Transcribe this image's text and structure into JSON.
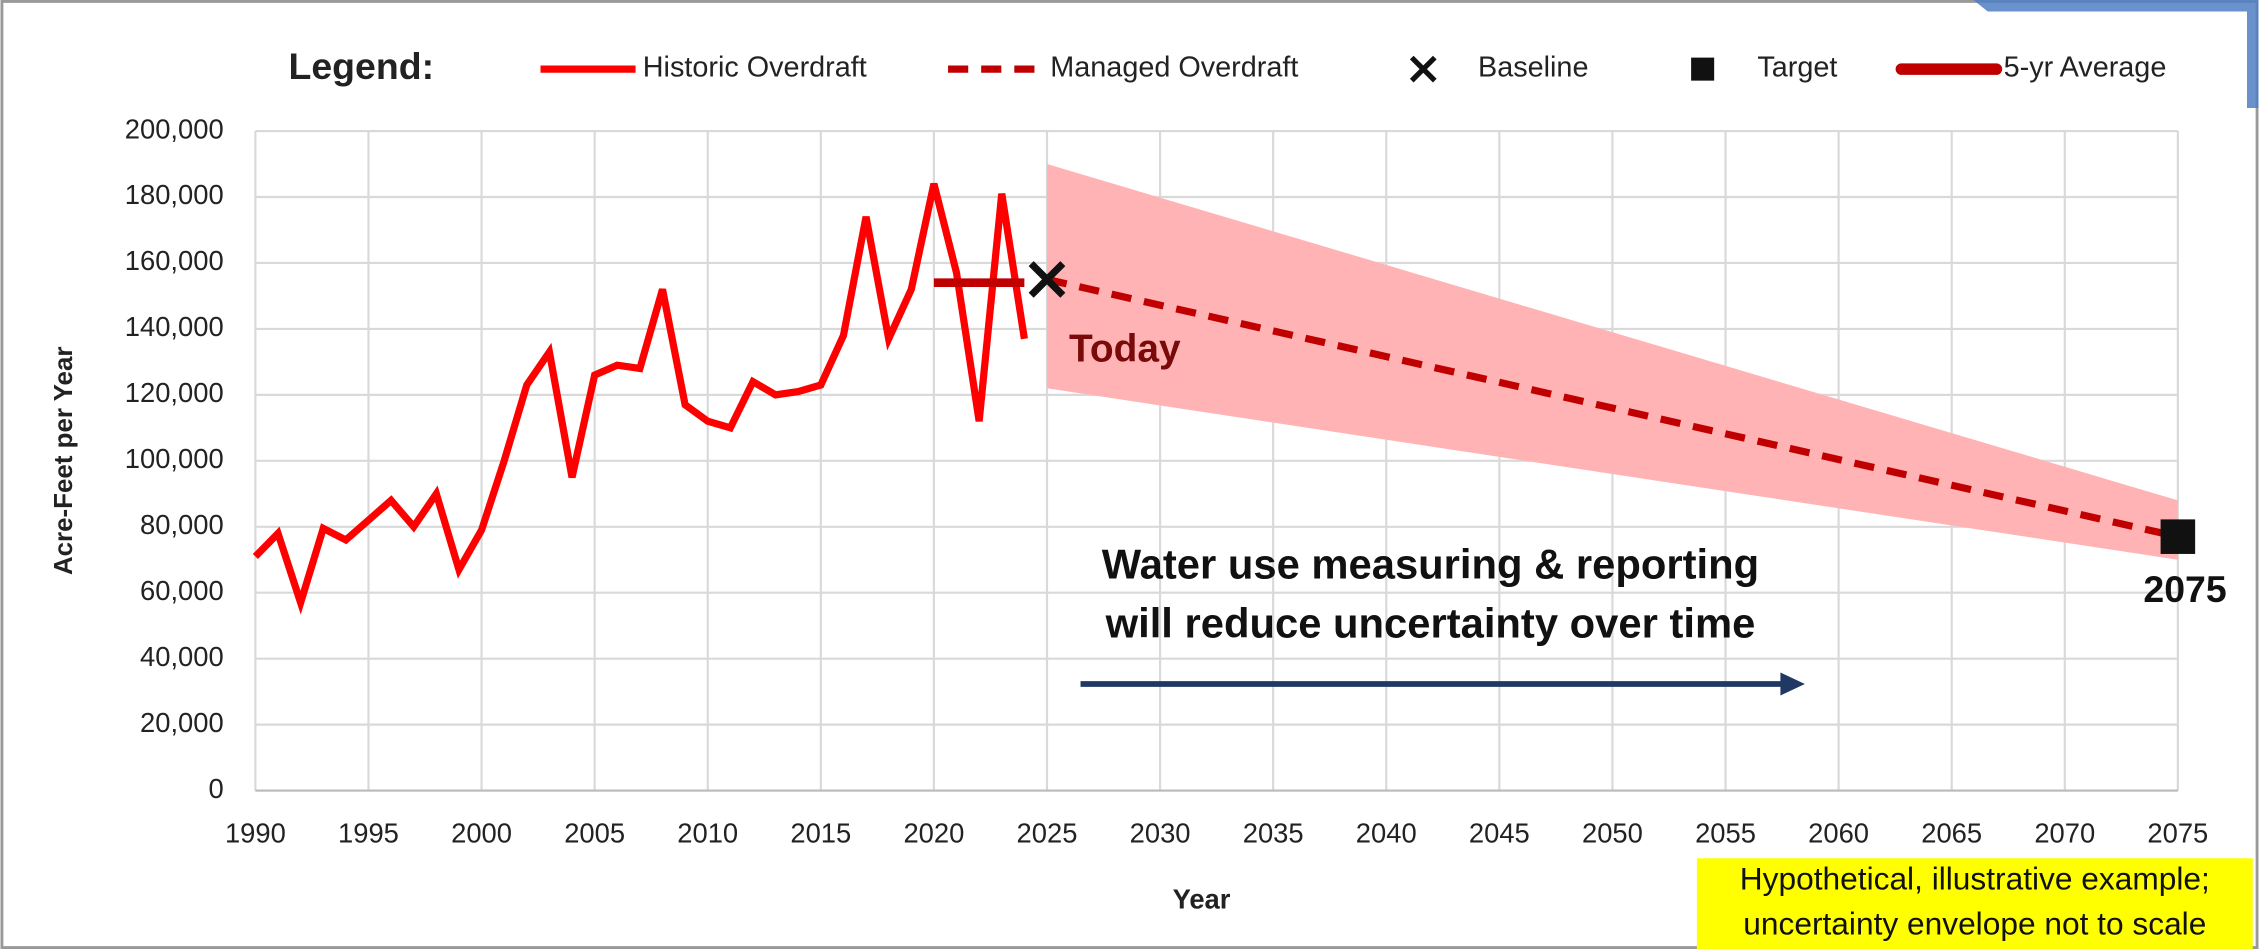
{
  "chart_data": {
    "type": "line",
    "legend_title": "Legend:",
    "xlabel": "Year",
    "ylabel": "Acre-Feet per Year",
    "xlim": [
      1990,
      2075
    ],
    "xticks": [
      1990,
      1995,
      2000,
      2005,
      2010,
      2015,
      2020,
      2025,
      2030,
      2035,
      2040,
      2045,
      2050,
      2055,
      2060,
      2065,
      2070,
      2075
    ],
    "ylim": [
      0,
      200000
    ],
    "yticks": [
      0,
      {
        "value": 20000,
        "label": "20,000"
      },
      {
        "value": 40000,
        "label": "40,000"
      },
      {
        "value": 60000,
        "label": "60,000"
      },
      {
        "value": 80000,
        "label": "80,000"
      },
      {
        "value": 100000,
        "label": "100,000"
      },
      {
        "value": 120000,
        "label": "120,000"
      },
      {
        "value": 140000,
        "label": "140,000"
      },
      {
        "value": 160000,
        "label": "160,000"
      },
      {
        "value": 180000,
        "label": "180,000"
      },
      {
        "value": 200000,
        "label": "200,000"
      }
    ],
    "grid": true,
    "series": [
      {
        "name": "Historic Overdraft",
        "color": "#ff0000",
        "style": "solid",
        "x": [
          1990,
          1991,
          1992,
          1993,
          1994,
          1995,
          1996,
          1997,
          1998,
          1999,
          2000,
          2001,
          2002,
          2003,
          2004,
          2005,
          2006,
          2007,
          2008,
          2009,
          2010,
          2011,
          2012,
          2013,
          2014,
          2015,
          2016,
          2017,
          2018,
          2019,
          2020,
          2021,
          2022,
          2023,
          2024
        ],
        "values": [
          71000,
          78000,
          57000,
          79500,
          76000,
          82000,
          88000,
          80000,
          90000,
          67000,
          79000,
          100000,
          123000,
          133000,
          95000,
          126000,
          129000,
          128000,
          152000,
          117000,
          112000,
          110000,
          124000,
          120000,
          121000,
          123000,
          138000,
          174000,
          137000,
          152000,
          184000,
          157000,
          112000,
          181000,
          137000
        ]
      },
      {
        "name": "Managed Overdraft",
        "color": "#c00000",
        "style": "dashed",
        "x": [
          2025,
          2075
        ],
        "values": [
          155000,
          77000
        ]
      },
      {
        "name": "Baseline",
        "color": "#111111",
        "style": "cross",
        "x": [
          2025
        ],
        "values": [
          155000
        ]
      },
      {
        "name": "Target",
        "color": "#111111",
        "style": "square",
        "x": [
          2075
        ],
        "values": [
          77000
        ]
      },
      {
        "name": "5-yr Average",
        "color": "#c00000",
        "style": "thick",
        "x": [
          2020,
          2024
        ],
        "values": [
          154000,
          154000
        ]
      }
    ],
    "envelope": {
      "color": "#ffb3b5",
      "x": [
        2025,
        2075
      ],
      "upper": [
        190000,
        88000
      ],
      "lower": [
        122000,
        70000
      ]
    },
    "annotations": {
      "today": "Today",
      "target_year": "2075",
      "note_lines": [
        "Water use measuring & reporting",
        "will reduce uncertainty over time"
      ],
      "disclaimer_lines": [
        "Hypothetical, illustrative example;",
        "uncertainty envelope not to scale"
      ]
    }
  }
}
